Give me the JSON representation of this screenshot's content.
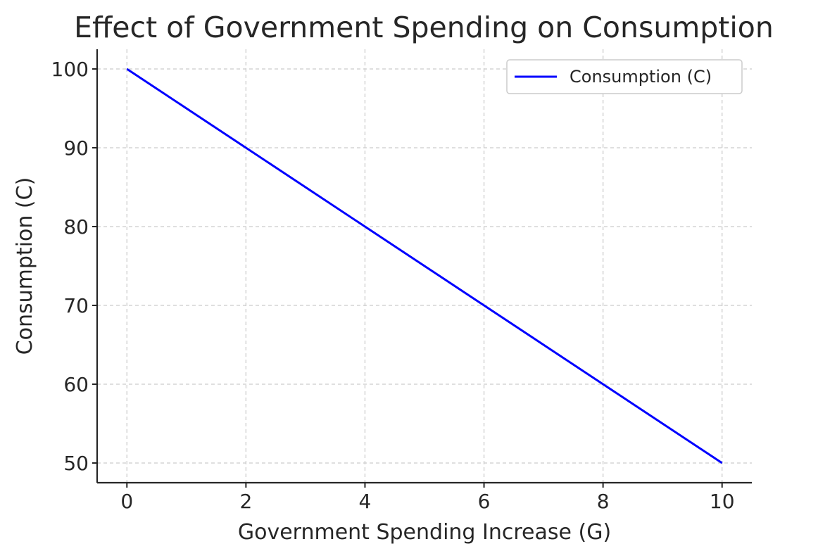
{
  "chart_data": {
    "type": "line",
    "title": "Effect of Government Spending on Consumption",
    "xlabel": "Government Spending Increase (G)",
    "ylabel": "Consumption (C)",
    "xlim": [
      -0.5,
      10.5
    ],
    "ylim": [
      47.5,
      102.5
    ],
    "xticks": [
      0,
      2,
      4,
      6,
      8,
      10
    ],
    "yticks": [
      50,
      60,
      70,
      80,
      90,
      100
    ],
    "grid": true,
    "legend_position": "top-right",
    "series": [
      {
        "name": "Consumption (C)",
        "color": "#0000ff",
        "x": [
          0,
          1,
          2,
          3,
          4,
          5,
          6,
          7,
          8,
          9,
          10
        ],
        "y": [
          100,
          95,
          90,
          85,
          80,
          75,
          70,
          65,
          60,
          55,
          50
        ]
      }
    ]
  }
}
